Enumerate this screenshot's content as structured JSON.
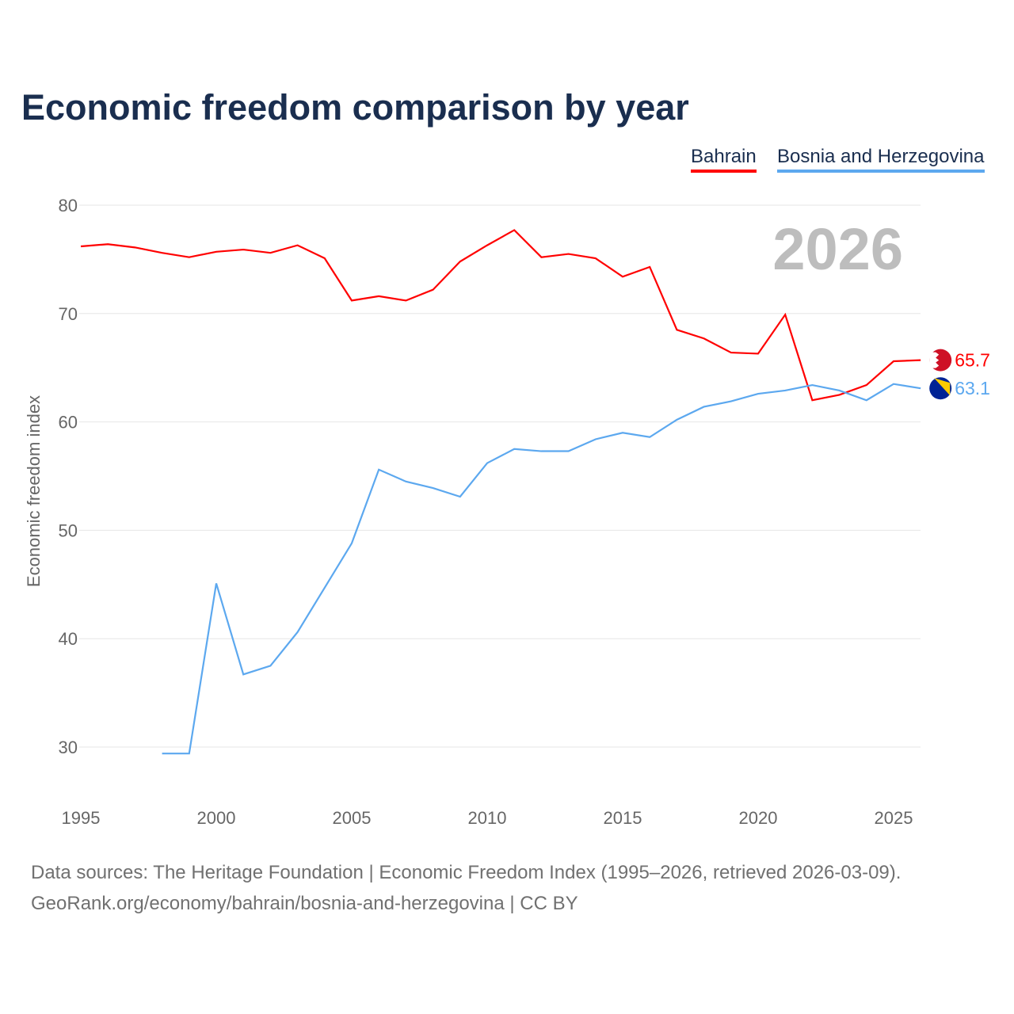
{
  "chart_data": {
    "type": "line",
    "title": "Economic freedom comparison by year",
    "ylabel": "Economic freedom index",
    "xlabel": "",
    "xlim": [
      1995,
      2026
    ],
    "ylim": [
      25,
      82
    ],
    "xticks": [
      "1995",
      "2000",
      "2005",
      "2010",
      "2015",
      "2020",
      "2025"
    ],
    "yticks": [
      "30",
      "40",
      "50",
      "60",
      "70",
      "80"
    ],
    "grid": true,
    "legend_position": "top-right",
    "annotation": "2026",
    "series": [
      {
        "name": "Bahrain",
        "color": "#ff0000",
        "end_label": "65.7",
        "x": [
          1995,
          1996,
          1997,
          1998,
          1999,
          2000,
          2001,
          2002,
          2003,
          2004,
          2005,
          2006,
          2007,
          2008,
          2009,
          2010,
          2011,
          2012,
          2013,
          2014,
          2015,
          2016,
          2017,
          2018,
          2019,
          2020,
          2021,
          2022,
          2023,
          2024,
          2025,
          2026
        ],
        "values": [
          76.2,
          76.4,
          76.1,
          75.6,
          75.2,
          75.7,
          75.9,
          75.6,
          76.3,
          75.1,
          71.2,
          71.6,
          71.2,
          72.2,
          74.8,
          76.3,
          77.7,
          75.2,
          75.5,
          75.1,
          73.4,
          74.3,
          68.5,
          67.7,
          66.4,
          66.3,
          69.9,
          62.0,
          62.5,
          63.4,
          65.6,
          65.7
        ]
      },
      {
        "name": "Bosnia and Herzegovina",
        "color": "#5ca8ef",
        "end_label": "63.1",
        "x": [
          1998,
          1999,
          2000,
          2001,
          2002,
          2003,
          2004,
          2005,
          2006,
          2007,
          2008,
          2009,
          2010,
          2011,
          2012,
          2013,
          2014,
          2015,
          2016,
          2017,
          2018,
          2019,
          2020,
          2021,
          2022,
          2023,
          2024,
          2025,
          2026
        ],
        "values": [
          29.4,
          29.4,
          45.1,
          36.7,
          37.5,
          40.6,
          44.7,
          48.8,
          55.6,
          54.5,
          53.9,
          53.1,
          56.2,
          57.5,
          57.3,
          57.3,
          58.4,
          59.0,
          58.6,
          60.2,
          61.4,
          61.9,
          62.6,
          62.9,
          63.4,
          62.9,
          62.0,
          63.5,
          63.1
        ]
      }
    ]
  },
  "footer": {
    "line1": "Data sources: The Heritage Foundation | Economic Freedom Index (1995–2026, retrieved 2026-03-09).",
    "line2": "GeoRank.org/economy/bahrain/bosnia-and-herzegovina | CC BY"
  }
}
